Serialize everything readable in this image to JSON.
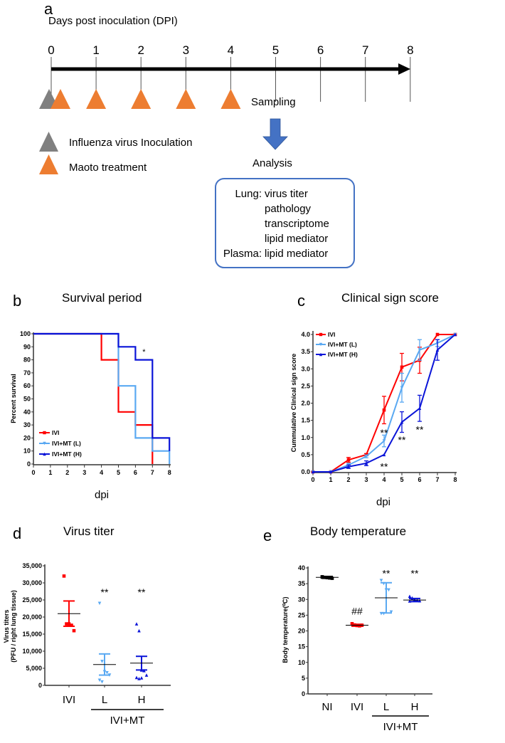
{
  "panel_a": {
    "label": "a",
    "title": "Days post inoculation (DPI)",
    "days": [
      "0",
      "1",
      "2",
      "3",
      "4",
      "5",
      "6",
      "7",
      "8"
    ],
    "inoculation_days": [
      0
    ],
    "treatment_days": [
      0,
      1,
      2,
      3,
      4
    ],
    "sampling_day": 5,
    "sampling": "Sampling",
    "analysis": "Analysis",
    "legend": [
      {
        "label": "Influenza virus Inoculation",
        "color": "#808080"
      },
      {
        "label": "Maoto treatment",
        "color": "#ED7D31"
      }
    ],
    "analysis_box": {
      "border_color": "#4472C4",
      "lines": [
        {
          "prefix": "Lung:",
          "text": "virus titer"
        },
        {
          "prefix": "",
          "text": "pathology"
        },
        {
          "prefix": "",
          "text": "transcriptome"
        },
        {
          "prefix": "",
          "text": "lipid mediator"
        },
        {
          "prefix": "Plasma:",
          "text": "lipid mediator"
        }
      ]
    }
  },
  "colors": {
    "IVI": "#FF0000",
    "L": "#5AA9F2",
    "H": "#0A14D8",
    "NI": "#000000"
  },
  "chart_data": [
    {
      "panel": "b",
      "type": "line",
      "title": "Survival period",
      "xlabel": "dpi",
      "ylabel": "Percent survival",
      "xlim": [
        0,
        8
      ],
      "ylim": [
        0,
        100
      ],
      "xticks": [
        "0",
        "1",
        "2",
        "3",
        "4",
        "5",
        "6",
        "7",
        "8"
      ],
      "yticks": [
        "0",
        "10",
        "20",
        "30",
        "40",
        "50",
        "60",
        "70",
        "80",
        "90",
        "100"
      ],
      "legend_placement": "bottom-left",
      "series": [
        {
          "name": "IVI",
          "key": "IVI",
          "times": [
            0,
            4,
            5,
            6,
            7
          ],
          "survival": [
            100,
            80,
            40,
            30,
            0
          ]
        },
        {
          "name": "IVI+MT (L)",
          "key": "L",
          "times": [
            0,
            5,
            6,
            7,
            8
          ],
          "survival": [
            100,
            60,
            20,
            10,
            0
          ]
        },
        {
          "name": "IVI+MT (H)",
          "key": "H",
          "times": [
            0,
            5,
            6,
            7,
            8
          ],
          "survival": [
            100,
            90,
            80,
            20,
            10
          ]
        }
      ],
      "annotations": [
        {
          "text": "*",
          "x": 6.5,
          "y": 87
        }
      ]
    },
    {
      "panel": "c",
      "type": "line",
      "title": "Clinical sign score",
      "xlabel": "dpi",
      "ylabel": "Cummulative Clinical sign score",
      "xlim": [
        0,
        8
      ],
      "ylim": [
        0,
        4
      ],
      "x": [
        0,
        1,
        2,
        3,
        4,
        5,
        6,
        7,
        8
      ],
      "xticks": [
        "0",
        "1",
        "2",
        "3",
        "4",
        "5",
        "6",
        "7",
        "8"
      ],
      "yticks": [
        "0.0",
        "0.5",
        "1.0",
        "1.5",
        "2.0",
        "2.5",
        "3.0",
        "3.5",
        "4.0"
      ],
      "legend_placement": "top-left",
      "series": [
        {
          "name": "IVI",
          "key": "IVI",
          "values": [
            0,
            0,
            0.35,
            0.5,
            1.8,
            3.05,
            3.25,
            4.0,
            4.0
          ],
          "errors": [
            0,
            0,
            0.07,
            0.03,
            0.4,
            0.4,
            0.38,
            0,
            0
          ]
        },
        {
          "name": "IVI+MT (L)",
          "key": "L",
          "values": [
            0,
            0,
            0.2,
            0.45,
            0.9,
            2.45,
            3.55,
            3.75,
            4.0
          ],
          "errors": [
            0,
            0,
            0.05,
            0.04,
            0.17,
            0.42,
            0.3,
            0.1,
            0
          ]
        },
        {
          "name": "IVI+MT (H)",
          "key": "H",
          "values": [
            0,
            0,
            0.15,
            0.25,
            0.5,
            1.45,
            1.85,
            3.55,
            4.0
          ],
          "errors": [
            0,
            0,
            0.05,
            0.07,
            0,
            0.3,
            0.38,
            0.3,
            0
          ]
        }
      ],
      "annotations": [
        {
          "text": "**",
          "x": 4,
          "y": 1.2
        },
        {
          "text": "**",
          "x": 4,
          "y": 0.22
        },
        {
          "text": "**",
          "x": 5,
          "y": 1.0
        },
        {
          "text": "**",
          "x": 6,
          "y": 1.3
        }
      ]
    },
    {
      "panel": "d",
      "type": "scatter",
      "title": "Virus titer",
      "xlabel": "",
      "ylabel": [
        "Virus titers",
        "(PFU / right lung tissue)"
      ],
      "ylim": [
        0,
        35000
      ],
      "yticks": [
        "0",
        "5,000",
        "10,000",
        "15,000",
        "20,000",
        "25,000",
        "30,000",
        "35,000"
      ],
      "categories": [
        "IVI",
        "L",
        "H"
      ],
      "group_label": "IVI+MT",
      "series": [
        {
          "name": "IVI",
          "key": "IVI",
          "points": [
            32000,
            18000,
            18000,
            17600,
            16000
          ],
          "mean": 21000,
          "err_low": 17300,
          "err_high": 24700
        },
        {
          "name": "L",
          "key": "L",
          "points": [
            24000,
            7000,
            4000,
            3700,
            3000,
            1500,
            1000
          ],
          "mean": 6100,
          "err_low": 3000,
          "err_high": 9200
        },
        {
          "name": "H",
          "key": "H",
          "points": [
            18000,
            16000,
            4500,
            4300,
            3000,
            2300,
            2000,
            2200
          ],
          "mean": 6500,
          "err_low": 4500,
          "err_high": 8500
        }
      ],
      "annotations": [
        {
          "text": "**",
          "category": "L",
          "y": 27500
        },
        {
          "text": "**",
          "category": "H",
          "y": 27500
        }
      ]
    },
    {
      "panel": "e",
      "type": "scatter",
      "title": "Body temperature",
      "xlabel": "",
      "ylabel": "Body temperature(⁰C)",
      "ylim": [
        0,
        40
      ],
      "yticks": [
        "0",
        "5",
        "10",
        "15",
        "20",
        "25",
        "30",
        "35",
        "40"
      ],
      "categories": [
        "NI",
        "IVI",
        "L",
        "H"
      ],
      "group_label": "IVI+MT",
      "series": [
        {
          "name": "NI",
          "key": "NI",
          "points": [
            37.2,
            37.0,
            36.9,
            36.8,
            36.7,
            37.1
          ],
          "mean": 37.0,
          "err_low": 36.7,
          "err_high": 37.3
        },
        {
          "name": "IVI",
          "key": "IVI",
          "points": [
            22.3,
            21.9,
            21.7,
            21.6,
            21.8
          ],
          "mean": 21.8,
          "err_low": 21.5,
          "err_high": 22.1
        },
        {
          "name": "L",
          "key": "L",
          "points": [
            36,
            35,
            33,
            33,
            26,
            25.5,
            25.5
          ],
          "mean": 30.5,
          "err_low": 25.7,
          "err_high": 35.3
        },
        {
          "name": "H",
          "key": "H",
          "points": [
            31,
            30.5,
            30,
            29.8,
            29.6,
            29.5,
            30.2
          ],
          "mean": 29.8,
          "err_low": 29.3,
          "err_high": 30.3
        }
      ],
      "annotations": [
        {
          "text": "##",
          "category": "IVI",
          "y": 26.5
        },
        {
          "text": "**",
          "category": "L",
          "y": 38.5
        },
        {
          "text": "**",
          "category": "H",
          "y": 38.5
        }
      ]
    }
  ]
}
